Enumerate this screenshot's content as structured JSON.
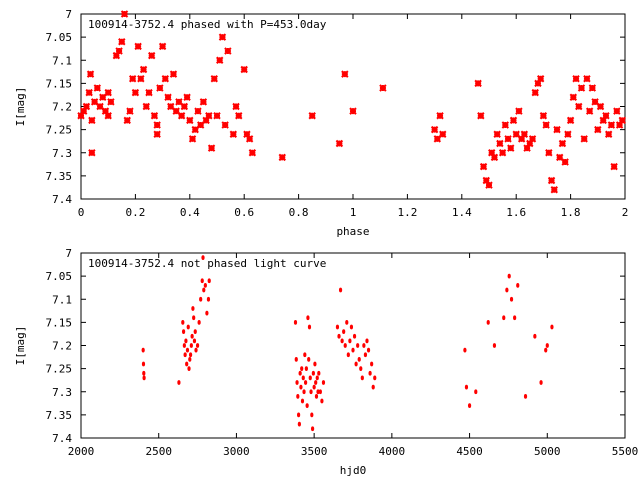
{
  "marker_color": "#ff0000",
  "chart_data": [
    {
      "type": "scatter",
      "title": "100914-3752.4 phased with P=453.0day",
      "xlabel": "phase",
      "ylabel": "I[mag]",
      "xlim": [
        0,
        2
      ],
      "ylim": [
        7.4,
        7.0
      ],
      "y_inverted": true,
      "grid": false,
      "x_ticks": [
        0,
        0.2,
        0.4,
        0.6,
        0.8,
        1,
        1.2,
        1.4,
        1.6,
        1.8,
        2
      ],
      "x_tick_labels": [
        "0",
        "0.2",
        "0.4",
        "0.6",
        "0.8",
        "1",
        "1.2",
        "1.4",
        "1.6",
        "1.8",
        "2"
      ],
      "y_ticks": [
        7,
        7.05,
        7.1,
        7.15,
        7.2,
        7.25,
        7.3,
        7.35,
        7.4
      ],
      "y_tick_labels": [
        "7",
        "7.05",
        "7.1",
        "7.15",
        "7.2",
        "7.25",
        "7.3",
        "7.35",
        "7.4"
      ],
      "points": [
        [
          0.0,
          7.22
        ],
        [
          0.01,
          7.21
        ],
        [
          0.02,
          7.2
        ],
        [
          0.03,
          7.17
        ],
        [
          0.035,
          7.13
        ],
        [
          0.04,
          7.3
        ],
        [
          0.04,
          7.23
        ],
        [
          0.05,
          7.19
        ],
        [
          0.06,
          7.16
        ],
        [
          0.07,
          7.2
        ],
        [
          0.08,
          7.18
        ],
        [
          0.09,
          7.21
        ],
        [
          0.1,
          7.22
        ],
        [
          0.1,
          7.17
        ],
        [
          0.11,
          7.19
        ],
        [
          0.13,
          7.09
        ],
        [
          0.14,
          7.08
        ],
        [
          0.15,
          7.06
        ],
        [
          0.16,
          7.0
        ],
        [
          0.17,
          7.23
        ],
        [
          0.18,
          7.21
        ],
        [
          0.19,
          7.14
        ],
        [
          0.2,
          7.17
        ],
        [
          0.21,
          7.07
        ],
        [
          0.22,
          7.14
        ],
        [
          0.23,
          7.12
        ],
        [
          0.24,
          7.2
        ],
        [
          0.25,
          7.17
        ],
        [
          0.26,
          7.09
        ],
        [
          0.27,
          7.22
        ],
        [
          0.28,
          7.24
        ],
        [
          0.28,
          7.26
        ],
        [
          0.29,
          7.16
        ],
        [
          0.3,
          7.07
        ],
        [
          0.31,
          7.14
        ],
        [
          0.32,
          7.18
        ],
        [
          0.33,
          7.2
        ],
        [
          0.34,
          7.13
        ],
        [
          0.35,
          7.21
        ],
        [
          0.36,
          7.19
        ],
        [
          0.37,
          7.22
        ],
        [
          0.38,
          7.2
        ],
        [
          0.39,
          7.18
        ],
        [
          0.4,
          7.23
        ],
        [
          0.41,
          7.27
        ],
        [
          0.42,
          7.25
        ],
        [
          0.43,
          7.21
        ],
        [
          0.44,
          7.24
        ],
        [
          0.45,
          7.19
        ],
        [
          0.46,
          7.23
        ],
        [
          0.47,
          7.22
        ],
        [
          0.48,
          7.29
        ],
        [
          0.49,
          7.14
        ],
        [
          0.5,
          7.22
        ],
        [
          0.51,
          7.1
        ],
        [
          0.52,
          7.05
        ],
        [
          0.53,
          7.24
        ],
        [
          0.54,
          7.08
        ],
        [
          0.56,
          7.26
        ],
        [
          0.57,
          7.2
        ],
        [
          0.58,
          7.22
        ],
        [
          0.6,
          7.12
        ],
        [
          0.61,
          7.26
        ],
        [
          0.62,
          7.27
        ],
        [
          0.63,
          7.3
        ],
        [
          0.74,
          7.31
        ],
        [
          0.85,
          7.22
        ],
        [
          0.95,
          7.28
        ],
        [
          0.97,
          7.13
        ],
        [
          1.0,
          7.21
        ],
        [
          1.11,
          7.16
        ],
        [
          1.3,
          7.25
        ],
        [
          1.31,
          7.27
        ],
        [
          1.32,
          7.22
        ],
        [
          1.33,
          7.26
        ],
        [
          1.46,
          7.15
        ],
        [
          1.47,
          7.22
        ],
        [
          1.48,
          7.33
        ],
        [
          1.49,
          7.36
        ],
        [
          1.5,
          7.37
        ],
        [
          1.51,
          7.3
        ],
        [
          1.52,
          7.31
        ],
        [
          1.53,
          7.26
        ],
        [
          1.54,
          7.28
        ],
        [
          1.55,
          7.3
        ],
        [
          1.56,
          7.24
        ],
        [
          1.57,
          7.27
        ],
        [
          1.58,
          7.29
        ],
        [
          1.59,
          7.23
        ],
        [
          1.6,
          7.26
        ],
        [
          1.61,
          7.21
        ],
        [
          1.62,
          7.27
        ],
        [
          1.63,
          7.26
        ],
        [
          1.64,
          7.29
        ],
        [
          1.65,
          7.28
        ],
        [
          1.66,
          7.27
        ],
        [
          1.67,
          7.17
        ],
        [
          1.68,
          7.15
        ],
        [
          1.69,
          7.14
        ],
        [
          1.7,
          7.22
        ],
        [
          1.71,
          7.24
        ],
        [
          1.72,
          7.3
        ],
        [
          1.73,
          7.36
        ],
        [
          1.74,
          7.38
        ],
        [
          1.75,
          7.25
        ],
        [
          1.76,
          7.31
        ],
        [
          1.77,
          7.28
        ],
        [
          1.78,
          7.32
        ],
        [
          1.79,
          7.26
        ],
        [
          1.8,
          7.23
        ],
        [
          1.81,
          7.18
        ],
        [
          1.82,
          7.14
        ],
        [
          1.83,
          7.2
        ],
        [
          1.84,
          7.16
        ],
        [
          1.85,
          7.27
        ],
        [
          1.86,
          7.14
        ],
        [
          1.87,
          7.21
        ],
        [
          1.88,
          7.16
        ],
        [
          1.89,
          7.19
        ],
        [
          1.9,
          7.25
        ],
        [
          1.91,
          7.2
        ],
        [
          1.92,
          7.23
        ],
        [
          1.93,
          7.22
        ],
        [
          1.94,
          7.26
        ],
        [
          1.95,
          7.24
        ],
        [
          1.96,
          7.33
        ],
        [
          1.97,
          7.21
        ],
        [
          1.98,
          7.24
        ],
        [
          1.99,
          7.23
        ]
      ]
    },
    {
      "type": "scatter",
      "title": "100914-3752.4 not phased light curve",
      "xlabel": "hjd0",
      "ylabel": "I[mag]",
      "xlim": [
        2000,
        5500
      ],
      "ylim": [
        7.4,
        7.0
      ],
      "y_inverted": true,
      "grid": false,
      "x_ticks": [
        2000,
        2500,
        3000,
        3500,
        4000,
        4500,
        5000,
        5500
      ],
      "x_tick_labels": [
        "2000",
        "2500",
        "3000",
        "3500",
        "4000",
        "4500",
        "5000",
        "5500"
      ],
      "y_ticks": [
        7,
        7.05,
        7.1,
        7.15,
        7.2,
        7.25,
        7.3,
        7.35,
        7.4
      ],
      "y_tick_labels": [
        "7",
        "7.05",
        "7.1",
        "7.15",
        "7.2",
        "7.25",
        "7.3",
        "7.35",
        "7.4"
      ],
      "points": [
        [
          2400,
          7.21
        ],
        [
          2402,
          7.24
        ],
        [
          2404,
          7.26
        ],
        [
          2406,
          7.27
        ],
        [
          2630,
          7.28
        ],
        [
          2655,
          7.15
        ],
        [
          2660,
          7.17
        ],
        [
          2665,
          7.2
        ],
        [
          2670,
          7.22
        ],
        [
          2675,
          7.19
        ],
        [
          2680,
          7.24
        ],
        [
          2685,
          7.21
        ],
        [
          2690,
          7.16
        ],
        [
          2695,
          7.25
        ],
        [
          2700,
          7.23
        ],
        [
          2705,
          7.22
        ],
        [
          2710,
          7.2
        ],
        [
          2715,
          7.18
        ],
        [
          2720,
          7.12
        ],
        [
          2725,
          7.14
        ],
        [
          2730,
          7.19
        ],
        [
          2735,
          7.17
        ],
        [
          2740,
          7.21
        ],
        [
          2750,
          7.2
        ],
        [
          2760,
          7.15
        ],
        [
          2770,
          7.1
        ],
        [
          2780,
          7.06
        ],
        [
          2785,
          7.01
        ],
        [
          2790,
          7.08
        ],
        [
          2800,
          7.07
        ],
        [
          2810,
          7.13
        ],
        [
          2820,
          7.1
        ],
        [
          2825,
          7.06
        ],
        [
          3380,
          7.15
        ],
        [
          3385,
          7.23
        ],
        [
          3390,
          7.28
        ],
        [
          3395,
          7.31
        ],
        [
          3400,
          7.35
        ],
        [
          3405,
          7.37
        ],
        [
          3410,
          7.26
        ],
        [
          3415,
          7.29
        ],
        [
          3420,
          7.25
        ],
        [
          3425,
          7.32
        ],
        [
          3430,
          7.27
        ],
        [
          3435,
          7.3
        ],
        [
          3440,
          7.22
        ],
        [
          3445,
          7.28
        ],
        [
          3450,
          7.25
        ],
        [
          3455,
          7.33
        ],
        [
          3460,
          7.14
        ],
        [
          3465,
          7.23
        ],
        [
          3470,
          7.16
        ],
        [
          3475,
          7.27
        ],
        [
          3480,
          7.3
        ],
        [
          3485,
          7.35
        ],
        [
          3490,
          7.38
        ],
        [
          3495,
          7.26
        ],
        [
          3500,
          7.29
        ],
        [
          3505,
          7.24
        ],
        [
          3510,
          7.28
        ],
        [
          3515,
          7.31
        ],
        [
          3520,
          7.27
        ],
        [
          3525,
          7.3
        ],
        [
          3530,
          7.26
        ],
        [
          3540,
          7.3
        ],
        [
          3550,
          7.32
        ],
        [
          3560,
          7.28
        ],
        [
          3650,
          7.16
        ],
        [
          3660,
          7.18
        ],
        [
          3670,
          7.08
        ],
        [
          3680,
          7.19
        ],
        [
          3690,
          7.17
        ],
        [
          3700,
          7.2
        ],
        [
          3710,
          7.15
        ],
        [
          3720,
          7.22
        ],
        [
          3730,
          7.19
        ],
        [
          3740,
          7.16
        ],
        [
          3750,
          7.21
        ],
        [
          3760,
          7.18
        ],
        [
          3770,
          7.24
        ],
        [
          3780,
          7.2
        ],
        [
          3790,
          7.23
        ],
        [
          3800,
          7.25
        ],
        [
          3810,
          7.27
        ],
        [
          3820,
          7.2
        ],
        [
          3830,
          7.22
        ],
        [
          3840,
          7.19
        ],
        [
          3850,
          7.21
        ],
        [
          3860,
          7.26
        ],
        [
          3870,
          7.24
        ],
        [
          3880,
          7.29
        ],
        [
          3890,
          7.27
        ],
        [
          4470,
          7.21
        ],
        [
          4480,
          7.29
        ],
        [
          4500,
          7.33
        ],
        [
          4540,
          7.3
        ],
        [
          4620,
          7.15
        ],
        [
          4660,
          7.2
        ],
        [
          4720,
          7.14
        ],
        [
          4740,
          7.08
        ],
        [
          4755,
          7.05
        ],
        [
          4770,
          7.1
        ],
        [
          4790,
          7.14
        ],
        [
          4810,
          7.07
        ],
        [
          4860,
          7.31
        ],
        [
          4920,
          7.18
        ],
        [
          4960,
          7.28
        ],
        [
          4990,
          7.21
        ],
        [
          5000,
          7.2
        ],
        [
          5030,
          7.16
        ]
      ]
    }
  ]
}
